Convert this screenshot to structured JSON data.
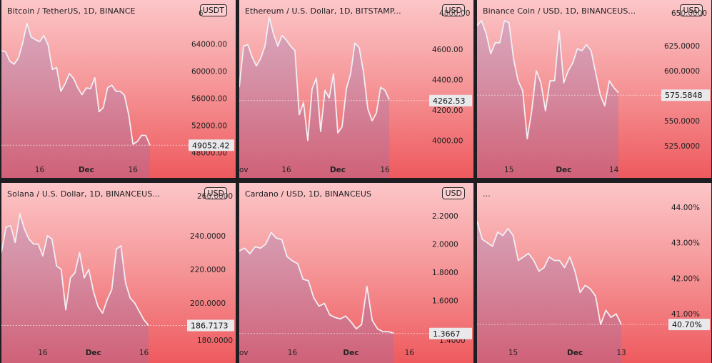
{
  "chart_data": [
    {
      "type": "line",
      "title": "Bitcoin / TetherUS, 1D, BINANCE",
      "title_faded": "",
      "currency": "USDT",
      "y_ticks": [
        "64000.00",
        "60000.00",
        "56000.00",
        "52000.00",
        "48000.00"
      ],
      "y_tick_values": [
        64000,
        60000,
        56000,
        52000,
        48000
      ],
      "top_tick_partial": "6",
      "ylim": [
        47500,
        67500
      ],
      "x_ticks": [
        {
          "label": "16",
          "bold": false,
          "i": 9
        },
        {
          "label": "Dec",
          "bold": true,
          "i": 20
        },
        {
          "label": "16",
          "bold": false,
          "i": 31
        }
      ],
      "last_price": "49052.42",
      "last_value": 49052.42,
      "values": [
        63000,
        62800,
        61400,
        61000,
        61900,
        64100,
        67000,
        65000,
        64600,
        64300,
        65200,
        63800,
        60200,
        60500,
        57000,
        58100,
        59600,
        58900,
        57500,
        56500,
        57500,
        57400,
        59000,
        54000,
        54600,
        57500,
        57900,
        57000,
        57000,
        56400,
        53500,
        49200,
        49600,
        50500,
        50500,
        49052
      ]
    },
    {
      "type": "line",
      "title": "Ethereum / U.S. Dollar, 1D, BITSTAMP...",
      "title_faded": "",
      "currency": "USD",
      "y_ticks": [
        "4600.00",
        "4400.00",
        "4200.00",
        "4000.00"
      ],
      "y_tick_values": [
        4600,
        4400,
        4200,
        4000
      ],
      "top_tick_partial": "4800.00",
      "ylim": [
        3900,
        4820
      ],
      "x_ticks": [
        {
          "label": "ov",
          "bold": false,
          "i": 0
        },
        {
          "label": "16",
          "bold": false,
          "i": 11
        },
        {
          "label": "Dec",
          "bold": true,
          "i": 23
        },
        {
          "label": "16",
          "bold": false,
          "i": 34
        }
      ],
      "last_price": "4262.53",
      "last_value": 4262.53,
      "values": [
        4350,
        4620,
        4630,
        4550,
        4490,
        4540,
        4620,
        4810,
        4700,
        4620,
        4690,
        4660,
        4620,
        4590,
        4170,
        4250,
        4000,
        4340,
        4410,
        4060,
        4330,
        4280,
        4440,
        4050,
        4090,
        4340,
        4440,
        4640,
        4610,
        4450,
        4210,
        4130,
        4180,
        4350,
        4330,
        4270
      ]
    },
    {
      "type": "line",
      "title": "Binance Coin / USD, 1D, BINANCEUS...",
      "title_faded": "",
      "currency": "USD",
      "y_ticks": [
        "625.0000",
        "600.0000",
        "550.0000",
        "525.0000"
      ],
      "y_tick_values": [
        625,
        600,
        550,
        525
      ],
      "top_tick_partial": "650.0000",
      "ylim": [
        515,
        655
      ],
      "x_ticks": [
        {
          "label": "15",
          "bold": false,
          "i": 7
        },
        {
          "label": "Dec",
          "bold": true,
          "i": 19
        },
        {
          "label": "14",
          "bold": false,
          "i": 30
        }
      ],
      "last_price": "575.5848",
      "last_value": 575.58,
      "values": [
        645,
        650,
        637,
        617,
        628,
        628,
        650,
        648,
        612,
        590,
        580,
        532,
        560,
        600,
        588,
        560,
        590,
        590,
        640,
        588,
        600,
        608,
        622,
        620,
        626,
        620,
        598,
        576,
        565,
        590,
        583,
        578
      ]
    },
    {
      "type": "line",
      "title": "Solana / U.S. Dollar, 1D, BINANCEUS...",
      "title_faded": "",
      "currency": "USD",
      "y_ticks": [
        "240.0000",
        "220.0000",
        "200.0000"
      ],
      "y_tick_values": [
        240,
        220,
        200
      ],
      "top_tick_partial": "260.0000",
      "bottom_tick_partial": "180.0000",
      "ylim": [
        178,
        262
      ],
      "x_ticks": [
        {
          "label": "16",
          "bold": false,
          "i": 9
        },
        {
          "label": "Dec",
          "bold": true,
          "i": 20
        },
        {
          "label": "16",
          "bold": false,
          "i": 31
        }
      ],
      "last_price": "186.7173",
      "last_value": 186.72,
      "values": [
        230,
        245,
        246,
        236,
        253,
        244,
        238,
        235,
        235,
        228,
        240,
        238,
        222,
        220,
        196,
        215,
        218,
        230,
        215,
        220,
        207,
        198,
        194,
        202,
        208,
        232,
        234,
        212,
        203,
        200,
        195,
        190,
        186.7
      ]
    },
    {
      "type": "line",
      "title": "Cardano / USD, 1D, BINANCEUS",
      "title_faded": "",
      "currency": "USD",
      "y_ticks": [
        "2.2000",
        "2.0000",
        "1.8000",
        "1.6000"
      ],
      "y_tick_values": [
        2.2,
        2.0,
        1.8,
        1.6
      ],
      "bottom_tick_partial": "1.4000",
      "ylim": [
        1.32,
        2.32
      ],
      "x_ticks": [
        {
          "label": "ov",
          "bold": false,
          "i": 0
        },
        {
          "label": "16",
          "bold": false,
          "i": 10
        },
        {
          "label": "Dec",
          "bold": true,
          "i": 21
        },
        {
          "label": "16",
          "bold": false,
          "i": 32
        }
      ],
      "last_price": "1.3667",
      "last_value": 1.3667,
      "values": [
        1.95,
        1.97,
        1.93,
        1.98,
        1.97,
        2.0,
        2.08,
        2.04,
        2.03,
        1.91,
        1.88,
        1.86,
        1.75,
        1.74,
        1.62,
        1.56,
        1.58,
        1.5,
        1.48,
        1.47,
        1.49,
        1.45,
        1.4,
        1.43,
        1.7,
        1.46,
        1.4,
        1.38,
        1.38,
        1.37
      ]
    },
    {
      "type": "line",
      "title": "...",
      "title_faded": "",
      "currency": "",
      "y_ticks": [
        "44.00%",
        "43.00%",
        "42.00%",
        "41.00%"
      ],
      "y_tick_values": [
        44,
        43,
        42,
        41
      ],
      "ylim": [
        40.3,
        44.4
      ],
      "x_ticks": [
        {
          "label": "15",
          "bold": false,
          "i": 7
        },
        {
          "label": "Dec",
          "bold": true,
          "i": 19
        },
        {
          "label": "13",
          "bold": false,
          "i": 28
        }
      ],
      "last_price": "40.70%",
      "last_value": 40.7,
      "values": [
        43.6,
        43.1,
        43.0,
        42.9,
        43.3,
        43.2,
        43.4,
        43.2,
        42.5,
        42.6,
        42.7,
        42.5,
        42.2,
        42.3,
        42.6,
        42.5,
        42.5,
        42.3,
        42.6,
        42.2,
        41.6,
        41.8,
        41.7,
        41.5,
        40.7,
        41.1,
        40.9,
        41.0,
        40.7
      ]
    }
  ]
}
